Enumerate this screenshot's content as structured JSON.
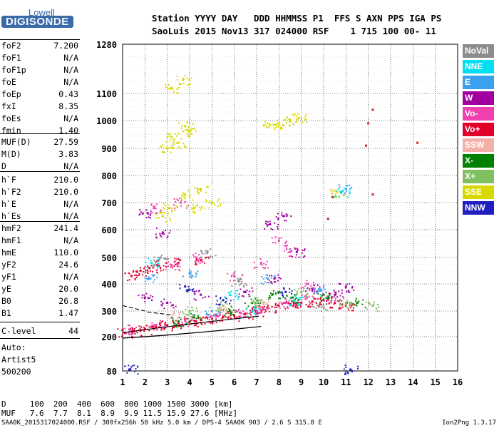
{
  "logo": {
    "line1": "Lowell",
    "line2": "DIGISONDE"
  },
  "header": {
    "row1": "Station YYYY DAY   DDD HHMMSS P1  FFS S AXN PPS IGA PS",
    "row2": "SaoLuis 2015 Nov13 317 024000 RSF    1 715 100 00- 11"
  },
  "params_group1": [
    {
      "name": "foF2",
      "value": "7.200"
    },
    {
      "name": "foF1",
      "value": "N/A"
    },
    {
      "name": "foF1p",
      "value": "N/A"
    },
    {
      "name": "foE",
      "value": "N/A"
    },
    {
      "name": "foEp",
      "value": "0.43"
    },
    {
      "name": "fxI",
      "value": "8.35"
    },
    {
      "name": "foEs",
      "value": "N/A"
    },
    {
      "name": "fmin",
      "value": "1.40"
    }
  ],
  "params_group2": [
    {
      "name": "MUF(D)",
      "value": "27.59"
    },
    {
      "name": "M(D)",
      "value": "3.83"
    },
    {
      "name": "D",
      "value": "N/A"
    }
  ],
  "params_group3": [
    {
      "name": "h`F",
      "value": "210.0"
    },
    {
      "name": "h`F2",
      "value": "210.0"
    },
    {
      "name": "h`E",
      "value": "N/A"
    },
    {
      "name": "h`Es",
      "value": "N/A"
    }
  ],
  "params_group4": [
    {
      "name": "hmF2",
      "value": "241.4"
    },
    {
      "name": "hmF1",
      "value": "N/A"
    },
    {
      "name": "hmE",
      "value": "110.0"
    },
    {
      "name": "yF2",
      "value": "24.6"
    },
    {
      "name": "yF1",
      "value": "N/A"
    },
    {
      "name": "yE",
      "value": "20.0"
    },
    {
      "name": "B0",
      "value": "26.8"
    },
    {
      "name": "B1",
      "value": "1.47"
    }
  ],
  "clevel": {
    "name": "C-level",
    "value": "44"
  },
  "auto": [
    "Auto:",
    "Artist5",
    "500200"
  ],
  "legend": [
    {
      "label": "NoVal",
      "color": "#8c8c8c"
    },
    {
      "label": "NNE",
      "color": "#00e0f0"
    },
    {
      "label": "E",
      "color": "#3aa0f0"
    },
    {
      "label": "W",
      "color": "#a000a0"
    },
    {
      "label": "Vo-",
      "color": "#f040b0"
    },
    {
      "label": "Vo+",
      "color": "#e0002a"
    },
    {
      "label": "SSW",
      "color": "#f4b0a8"
    },
    {
      "label": "X-",
      "color": "#008000"
    },
    {
      "label": "X+",
      "color": "#80c060"
    },
    {
      "label": "SSE",
      "color": "#d8d800"
    },
    {
      "label": "NNW",
      "color": "#2020c0"
    }
  ],
  "bottom": {
    "row_d": "D     100  200  400  600  800 1000 1500 3000 [km]",
    "row_muf": "MUF   7.6  7.7  8.1  8.9  9.9 11.5 15.9 27.6 [MHz]"
  },
  "footer": {
    "left": "SAA0K_2015317024000.RSF / 300fx256h 50 kHz 5.0 km / DPS-4 SAA0K 903 / 2.6 S 315.8 E",
    "right": "Ion2Png 1.3.17"
  },
  "chart_data": {
    "type": "scatter",
    "x_ticks": [
      "1",
      "2",
      "3",
      "4",
      "5",
      "6",
      "7",
      "8",
      "9",
      "10",
      "11",
      "12",
      "13",
      "14",
      "15",
      "16"
    ],
    "y_ticks": [
      "80",
      "200",
      "300",
      "400",
      "500",
      "600",
      "700",
      "800",
      "900",
      "1000",
      "1100",
      "1280"
    ],
    "xlim": [
      1,
      16
    ],
    "ylim": [
      80,
      1280
    ],
    "grid": true,
    "series": [
      {
        "name": "Vo+",
        "points": [
          [
            1.1,
            215
          ],
          [
            1.5,
            222
          ],
          [
            2.0,
            230
          ],
          [
            2.5,
            238
          ],
          [
            3.0,
            245
          ],
          [
            3.5,
            252
          ],
          [
            4.0,
            258
          ],
          [
            4.5,
            265
          ],
          [
            5.0,
            270
          ],
          [
            5.5,
            276
          ],
          [
            6.0,
            282
          ],
          [
            6.5,
            290
          ],
          [
            7.0,
            300
          ],
          [
            7.5,
            310
          ],
          [
            8.0,
            320
          ],
          [
            8.5,
            325
          ],
          [
            9.0,
            330
          ],
          [
            9.5,
            335
          ],
          [
            10.0,
            340
          ],
          [
            10.5,
            330
          ],
          [
            11.0,
            320
          ],
          [
            2.2,
            460
          ],
          [
            2.6,
            470
          ],
          [
            3.5,
            480
          ],
          [
            4.5,
            490
          ],
          [
            1.4,
            430
          ],
          [
            1.8,
            450
          ]
        ]
      },
      {
        "name": "Vo-",
        "points": [
          [
            1.3,
            228
          ],
          [
            2.5,
            246
          ],
          [
            3.8,
            262
          ],
          [
            5.2,
            280
          ],
          [
            6.3,
            292
          ],
          [
            7.2,
            305
          ],
          [
            8.3,
            330
          ],
          [
            9.2,
            345
          ],
          [
            10.2,
            350
          ],
          [
            6.0,
            430
          ],
          [
            7.2,
            480
          ],
          [
            8.0,
            560
          ],
          [
            8.5,
            520
          ],
          [
            9.3,
            400
          ],
          [
            4.3,
            500
          ],
          [
            3.2,
            470
          ],
          [
            2.4,
            680
          ],
          [
            3.6,
            700
          ]
        ]
      },
      {
        "name": "W",
        "points": [
          [
            2.0,
            350
          ],
          [
            3.0,
            330
          ],
          [
            4.5,
            360
          ],
          [
            6.5,
            370
          ],
          [
            7.8,
            420
          ],
          [
            8.8,
            520
          ],
          [
            9.5,
            380
          ],
          [
            10.5,
            360
          ],
          [
            11.0,
            390
          ],
          [
            2.8,
            590
          ],
          [
            7.6,
            620
          ],
          [
            8.2,
            650
          ],
          [
            1.9,
            660
          ]
        ]
      },
      {
        "name": "X-",
        "points": [
          [
            3.5,
            260
          ],
          [
            4.2,
            275
          ],
          [
            5.8,
            300
          ],
          [
            6.8,
            330
          ],
          [
            7.7,
            360
          ],
          [
            8.6,
            350
          ],
          [
            10.0,
            360
          ],
          [
            11.5,
            330
          ]
        ]
      },
      {
        "name": "X+",
        "points": [
          [
            4.0,
            300
          ],
          [
            5.5,
            320
          ],
          [
            7.0,
            340
          ],
          [
            9.0,
            370
          ],
          [
            12.2,
            320
          ],
          [
            11.0,
            330
          ]
        ]
      },
      {
        "name": "SSE",
        "points": [
          [
            3.0,
            900
          ],
          [
            3.5,
            920
          ],
          [
            4.0,
            960
          ],
          [
            3.2,
            940
          ],
          [
            3.8,
            980
          ],
          [
            8.0,
            990
          ],
          [
            8.5,
            1000
          ],
          [
            8.9,
            1010
          ],
          [
            7.6,
            985
          ],
          [
            3.2,
            1120
          ],
          [
            3.7,
            1150
          ],
          [
            3.1,
            680
          ],
          [
            3.8,
            730
          ],
          [
            4.5,
            750
          ],
          [
            5.0,
            700
          ],
          [
            4.2,
            680
          ],
          [
            2.8,
            650
          ],
          [
            10.6,
            740
          ]
        ]
      },
      {
        "name": "E",
        "points": [
          [
            2.2,
            420
          ],
          [
            4.0,
            440
          ],
          [
            5.0,
            300
          ],
          [
            7.5,
            420
          ],
          [
            9.8,
            380
          ],
          [
            11.0,
            750
          ]
        ]
      },
      {
        "name": "NNE",
        "points": [
          [
            2.3,
            480
          ],
          [
            5.8,
            360
          ],
          [
            6.8,
            300
          ],
          [
            8.7,
            340
          ],
          [
            10.8,
            740
          ]
        ]
      },
      {
        "name": "NNW",
        "points": [
          [
            3.8,
            390
          ],
          [
            5.5,
            340
          ],
          [
            8.3,
            370
          ],
          [
            11.2,
            85
          ],
          [
            1.3,
            85
          ]
        ]
      },
      {
        "name": "NoVal",
        "points": [
          [
            2.7,
            500
          ],
          [
            4.8,
            520
          ],
          [
            6.2,
            410
          ],
          [
            9.8,
            320
          ]
        ]
      },
      {
        "name": "SSW",
        "points": [
          [
            3.3,
            290
          ],
          [
            5.4,
            310
          ],
          [
            7.3,
            330
          ]
        ]
      },
      {
        "name": "other",
        "points": [
          [
            12.2,
            1040
          ],
          [
            12.0,
            990
          ],
          [
            11.9,
            910
          ],
          [
            12.2,
            730
          ],
          [
            14.2,
            920
          ],
          [
            10.2,
            640
          ],
          [
            10.4,
            720
          ]
        ]
      }
    ]
  }
}
